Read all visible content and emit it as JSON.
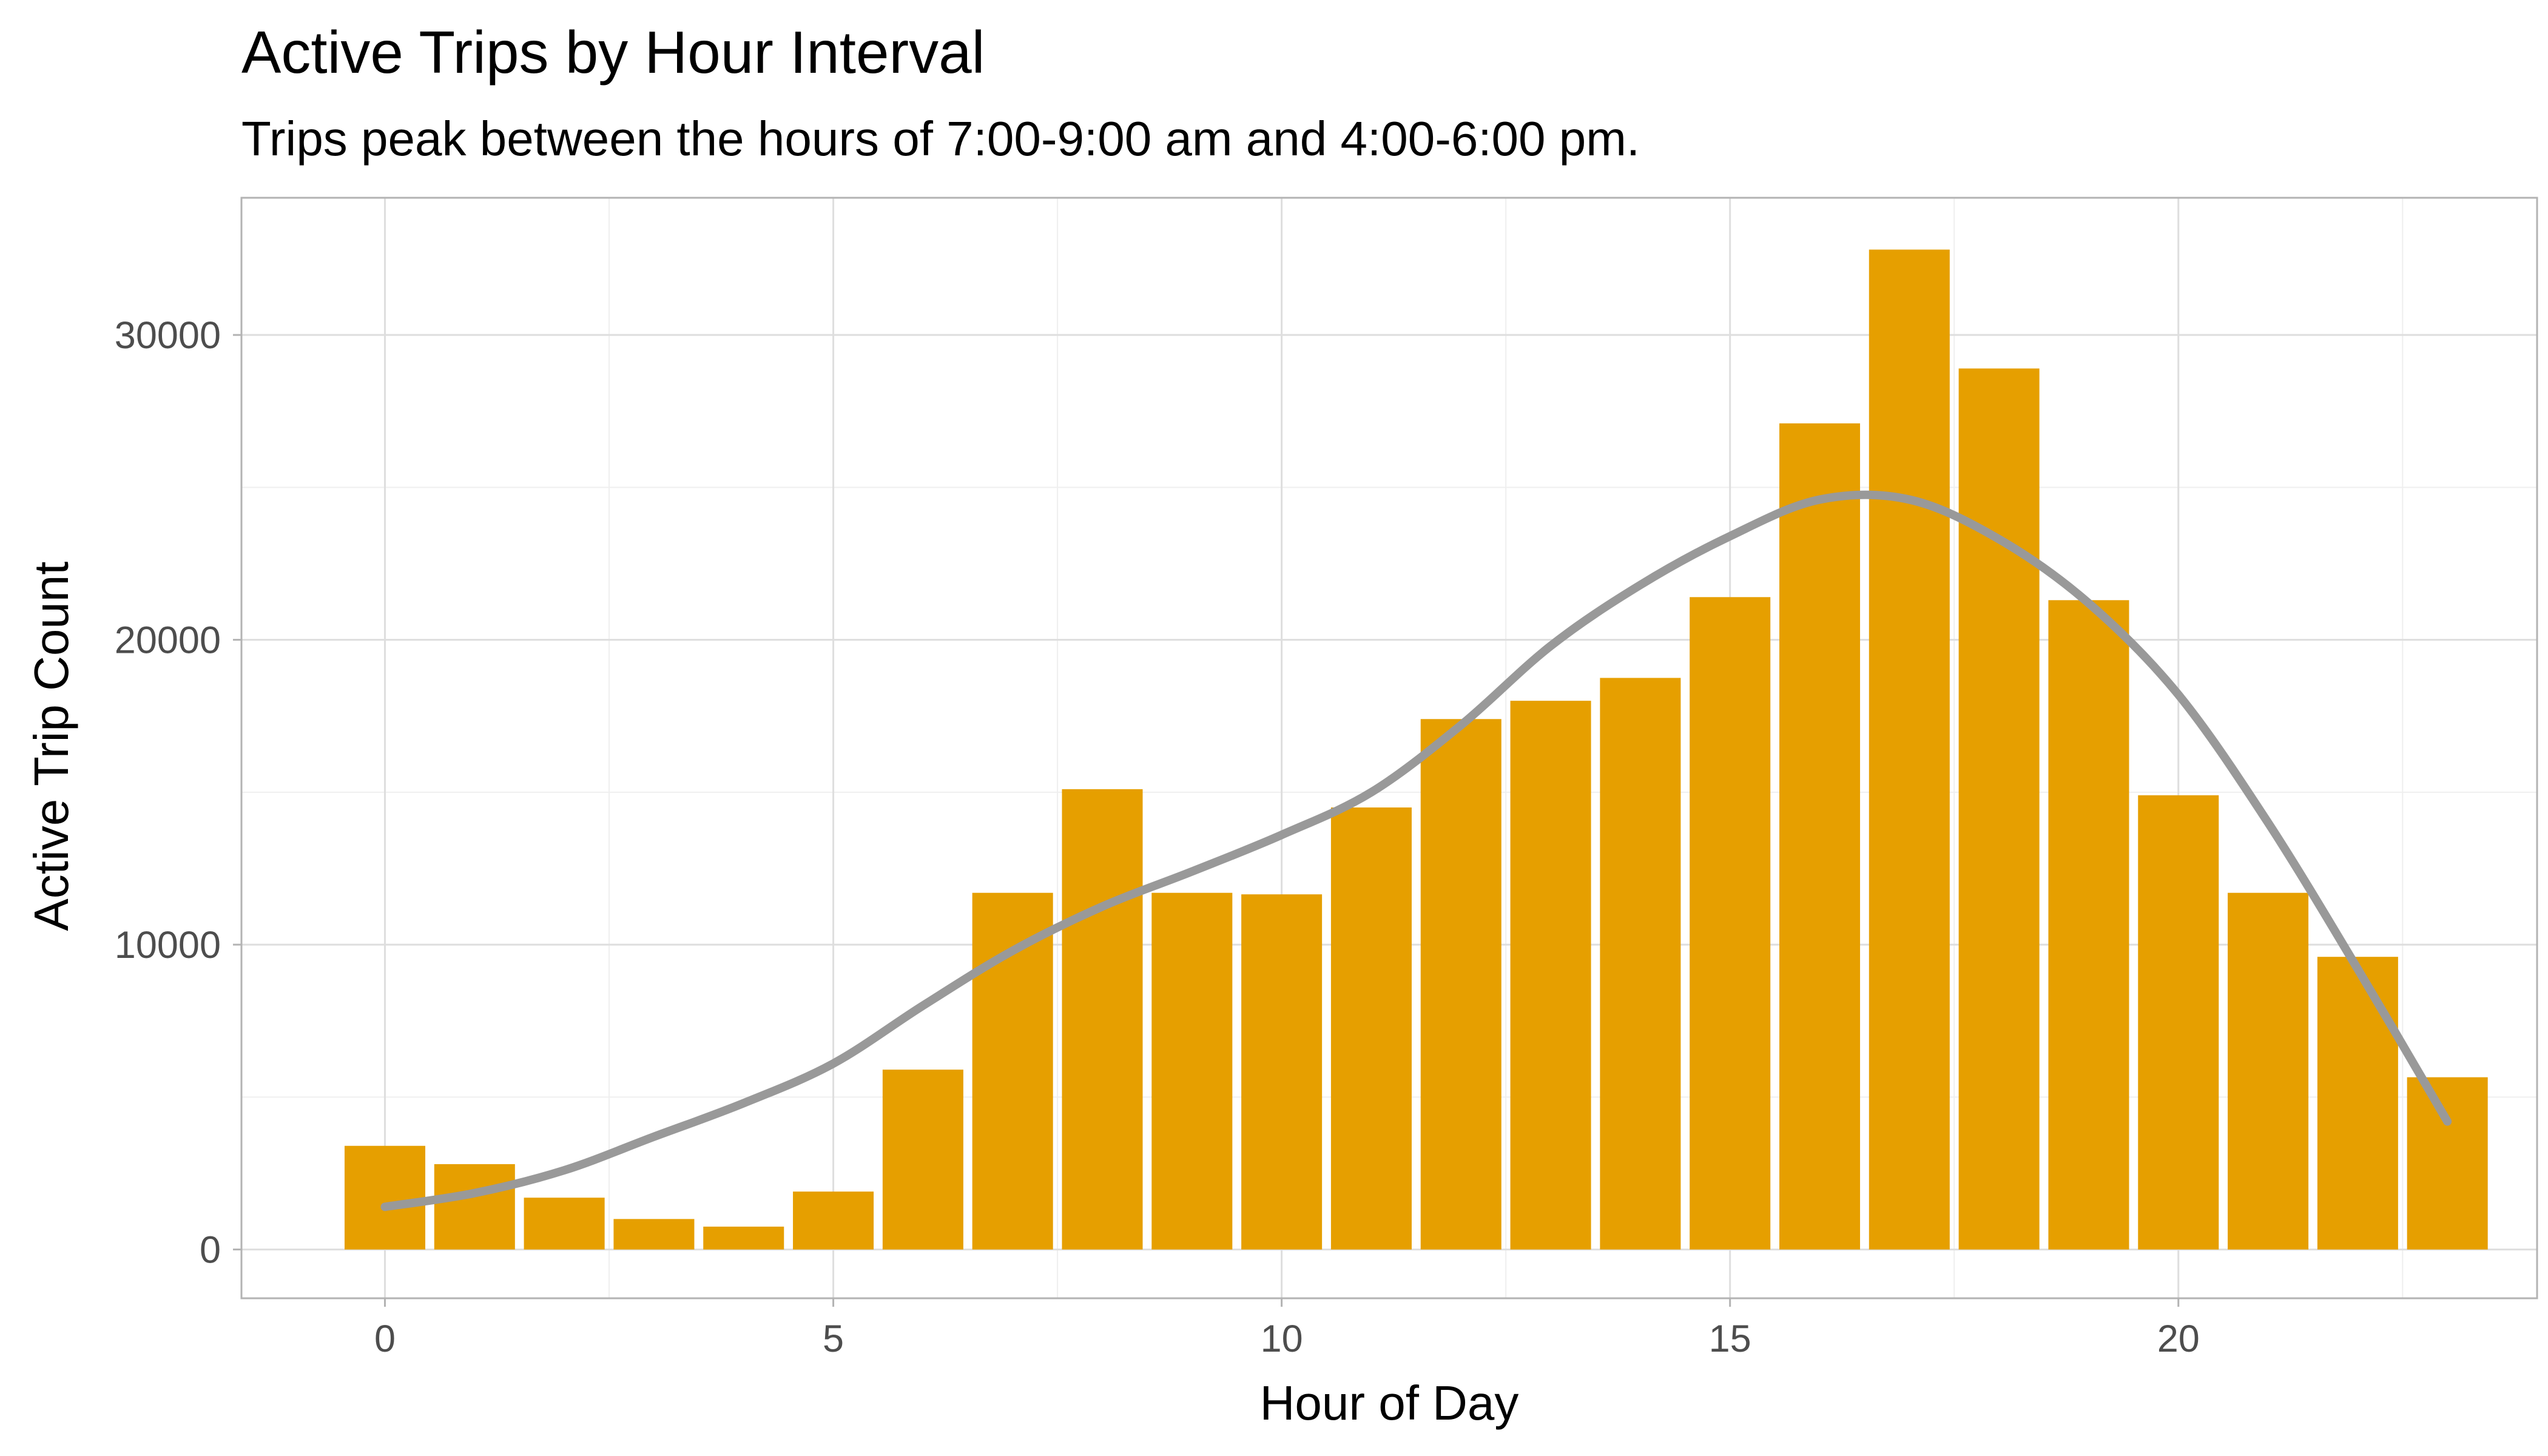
{
  "chart_data": {
    "type": "bar",
    "title": "Active Trips by Hour Interval",
    "subtitle": "Trips peak between the hours of 7:00-9:00 am and 4:00-6:00 pm.",
    "xlabel": "Hour of Day",
    "ylabel": "Active Trip Count",
    "x": [
      0,
      1,
      2,
      3,
      4,
      5,
      6,
      7,
      8,
      9,
      10,
      11,
      12,
      13,
      14,
      15,
      16,
      17,
      18,
      19,
      20,
      21,
      22,
      23
    ],
    "values": [
      3400,
      2800,
      1700,
      1000,
      750,
      1900,
      5900,
      11700,
      15100,
      11700,
      11650,
      14500,
      17400,
      18000,
      18750,
      21400,
      27100,
      32800,
      28900,
      21300,
      14900,
      11700,
      9600,
      5650
    ],
    "trend_line": {
      "x": [
        0,
        1,
        2,
        3,
        4,
        5,
        6,
        7,
        8,
        9,
        10,
        11,
        12,
        13,
        14,
        15,
        16,
        17,
        18,
        19,
        20,
        21,
        22,
        23
      ],
      "y": [
        1400,
        1850,
        2600,
        3700,
        4800,
        6100,
        8000,
        9800,
        11250,
        12400,
        13600,
        15000,
        17200,
        19800,
        21800,
        23400,
        24600,
        24600,
        23300,
        21200,
        18200,
        14000,
        9200,
        4200
      ]
    },
    "xlim": [
      -1.6,
      24.0
    ],
    "ylim": [
      -1600,
      34500
    ],
    "x_ticks": [
      0,
      5,
      10,
      15,
      20
    ],
    "y_ticks": [
      0,
      10000,
      20000,
      30000
    ],
    "x_tick_labels": [
      "0",
      "5",
      "10",
      "15",
      "20"
    ],
    "y_tick_labels": [
      "0",
      "10000",
      "20000",
      "30000"
    ],
    "grid": true,
    "legend": "none",
    "colors": {
      "bar": "#E69F00",
      "line": "#999999"
    }
  }
}
